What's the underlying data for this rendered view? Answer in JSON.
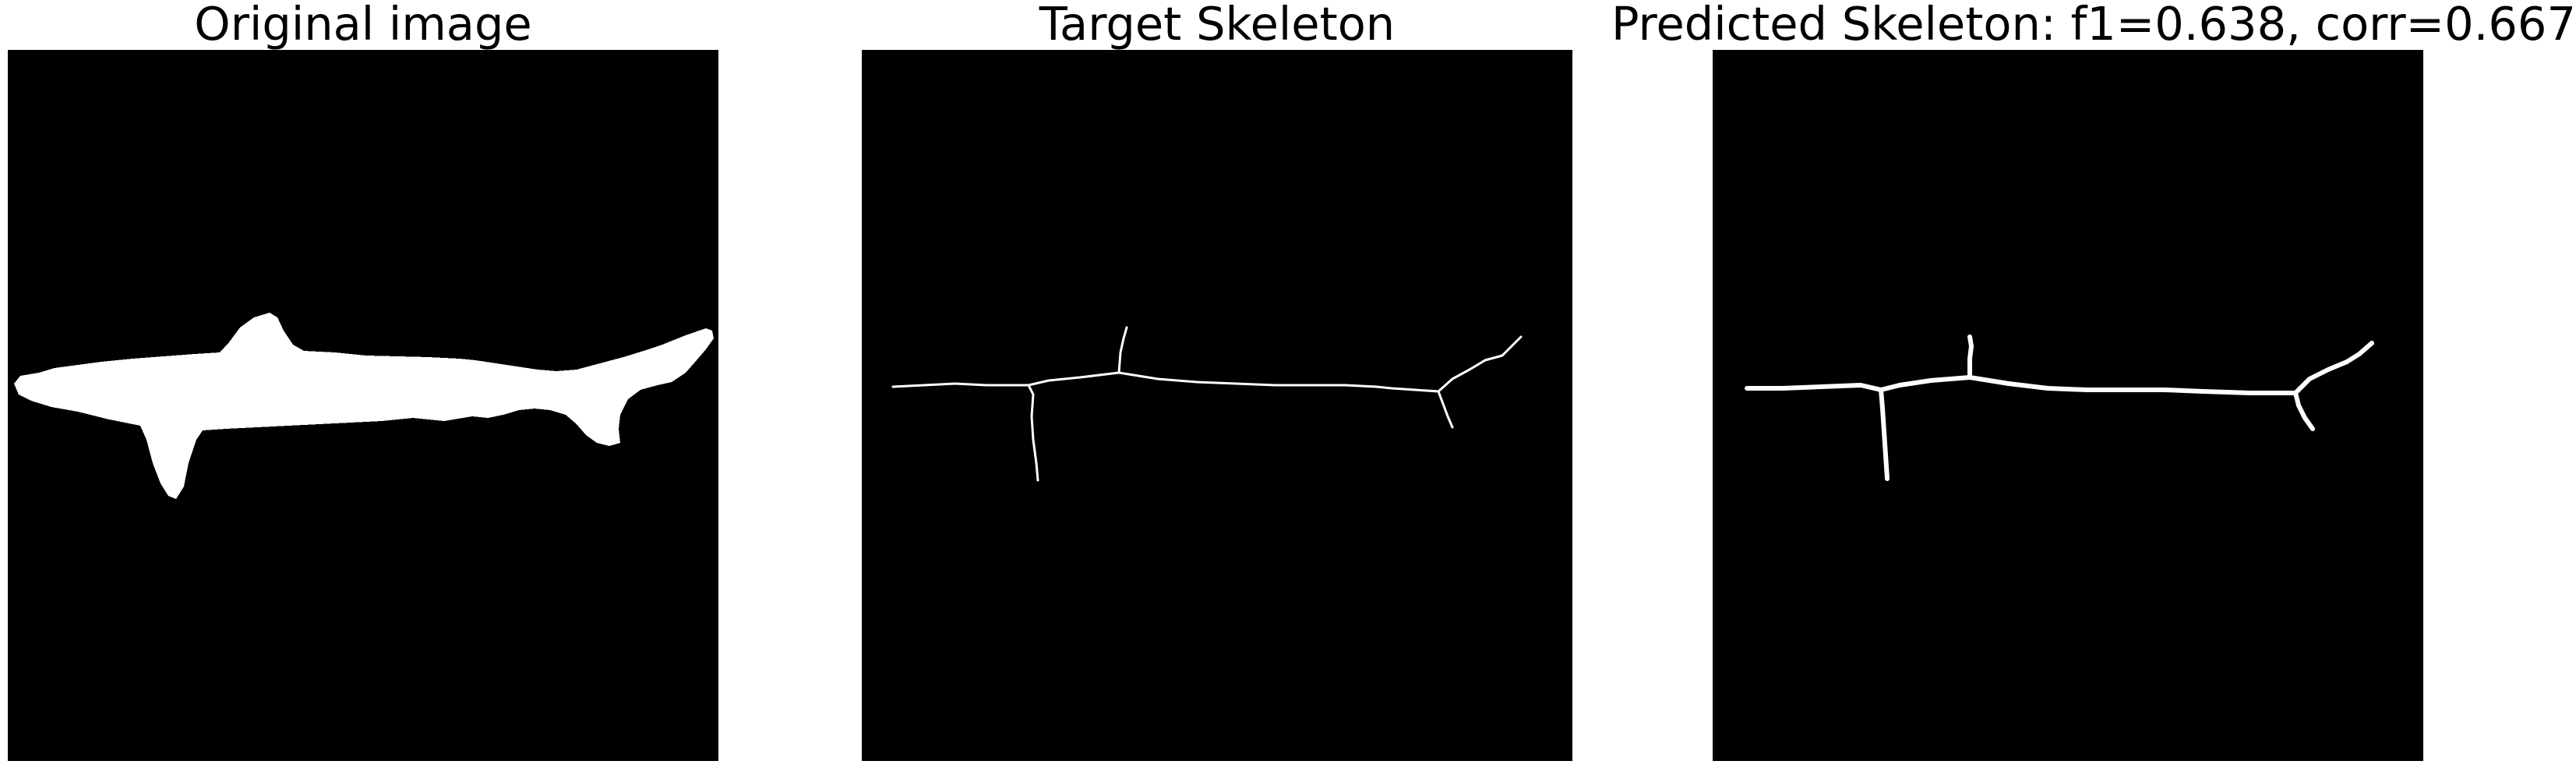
{
  "panels": [
    {
      "title": "Original image",
      "content": "silhouette",
      "colors": {
        "background": "#000000",
        "foreground": "#ffffff"
      }
    },
    {
      "title": "Target Skeleton",
      "content": "skeleton-thin",
      "colors": {
        "background": "#000000",
        "foreground": "#ffffff"
      }
    },
    {
      "title": "Predicted Skeleton: f1=0.638, corr=0.667",
      "content": "skeleton-thick",
      "colors": {
        "background": "#000000",
        "foreground": "#ffffff"
      }
    }
  ]
}
